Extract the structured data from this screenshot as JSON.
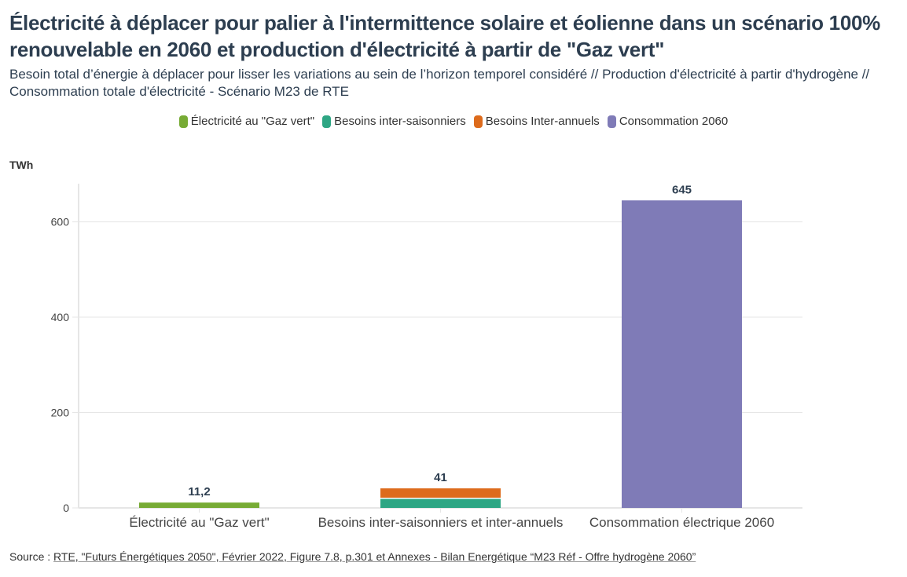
{
  "title": "Électricité à déplacer pour palier à l'intermittence solaire et éolienne dans un scénario 100% renouvelable en 2060 et production d'électricité à partir de \"Gaz vert\"",
  "subtitle": "Besoin total d’énergie à déplacer pour lisser les variations au sein de l’horizon temporel considéré // Production d'électricité à partir d'hydrogène // Consommation totale d'électricité - Scénario M23 de RTE",
  "source": {
    "label": "Source : ",
    "link_text": "RTE, \"Futurs Énergétiques 2050\", Février 2022, Figure 7.8, p.301 et Annexes - Bilan Energétique “M23 Réf - Offre hydrogène 2060”"
  },
  "chart_data": {
    "type": "bar",
    "stacked": true,
    "title": "Électricité à déplacer pour palier à l'intermittence solaire et éolienne dans un scénario 100% renouvelable en 2060 et production d'électricité à partir de \"Gaz vert\"",
    "xlabel": "",
    "ylabel": "TWh",
    "ylim": [
      0,
      680
    ],
    "yticks": [
      0,
      200,
      400,
      600
    ],
    "grid": true,
    "legend_position": "top-center",
    "categories": [
      "Électricité au \"Gaz vert\"",
      "Besoins inter-saisonniers et inter-annuels",
      "Consommation électrique 2060"
    ],
    "series": [
      {
        "name": "Électricité au \"Gaz vert\"",
        "color": "#77ab35",
        "values": [
          11.2,
          0,
          0
        ]
      },
      {
        "name": "Besoins inter-saisonniers",
        "color": "#2ea684",
        "values": [
          0,
          19,
          0
        ]
      },
      {
        "name": "Besoins Inter-annuels",
        "color": "#dd6b1c",
        "values": [
          0,
          22,
          0
        ]
      },
      {
        "name": "Consommation 2060",
        "color": "#7f7bb7",
        "values": [
          0,
          0,
          645
        ]
      }
    ],
    "totals_labels": [
      "11,2",
      "41",
      "645"
    ],
    "totals": [
      11.2,
      41,
      645
    ]
  }
}
